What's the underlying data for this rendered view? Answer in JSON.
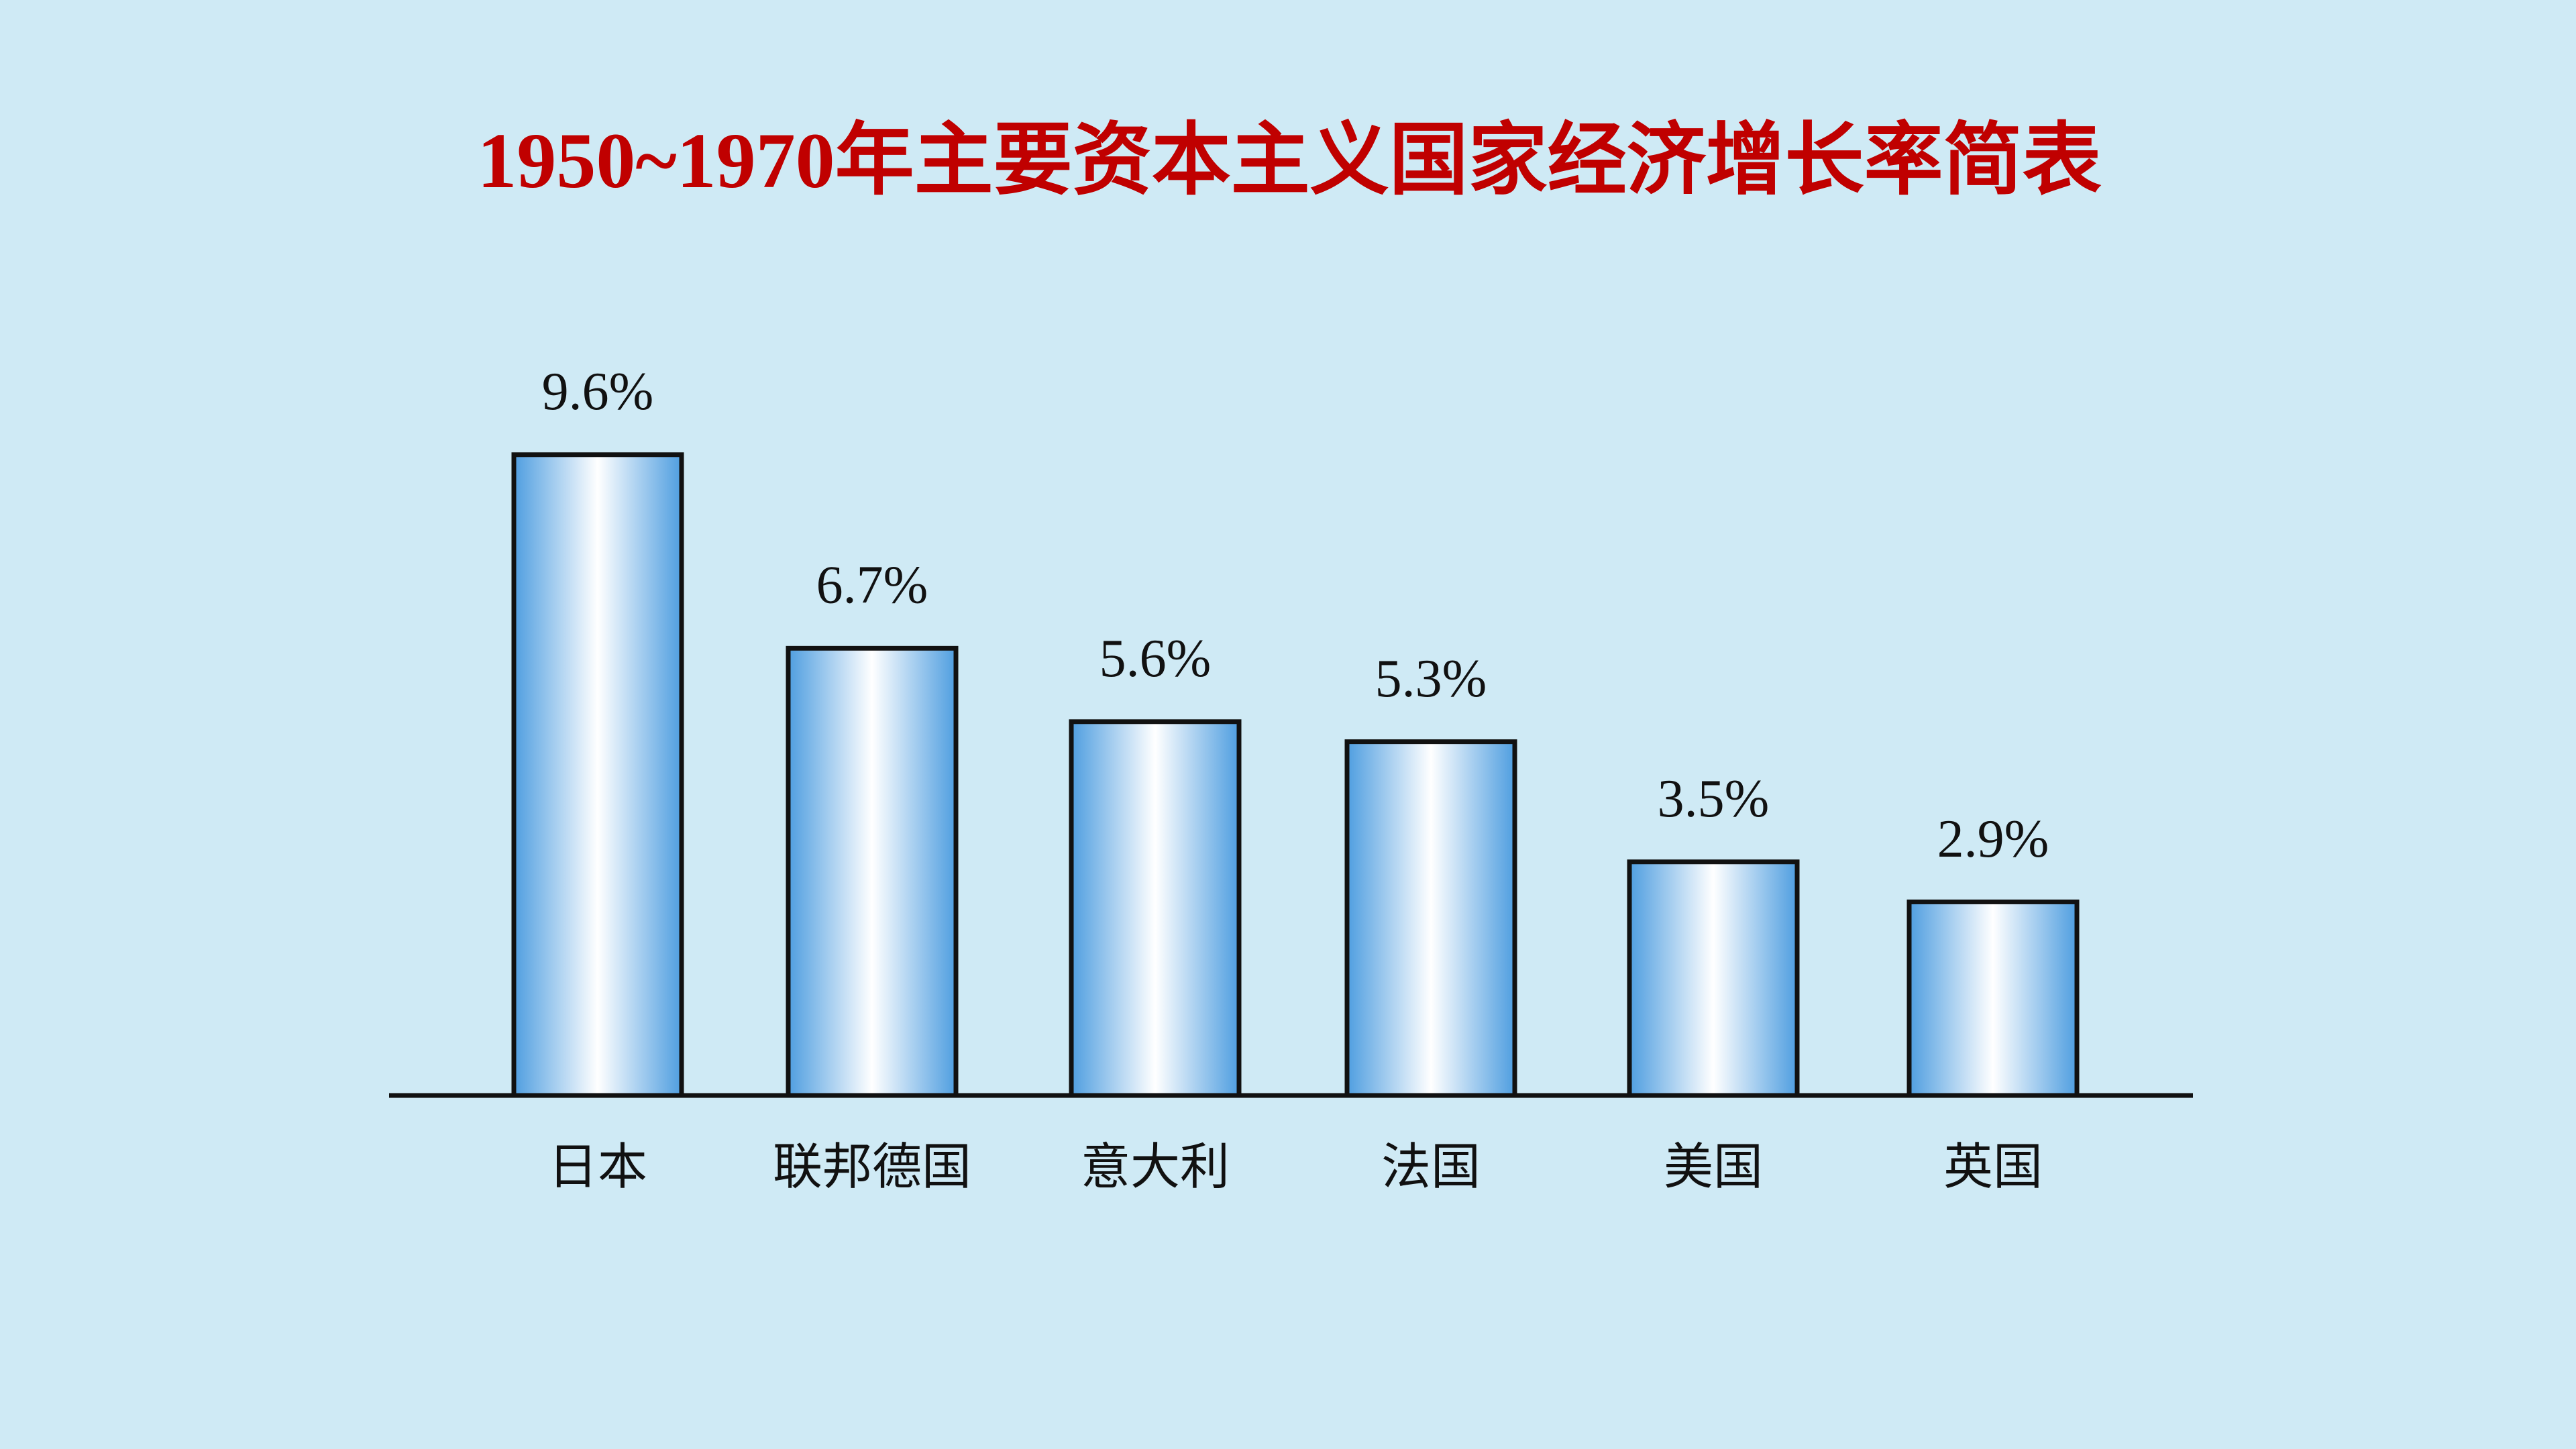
{
  "chart_data": {
    "type": "bar",
    "title": "1950~1970年主要资本主义国家经济增长率简表",
    "categories": [
      "日本",
      "联邦德国",
      "意大利",
      "法国",
      "美国",
      "英国"
    ],
    "values": [
      9.6,
      6.7,
      5.6,
      5.3,
      3.5,
      2.9
    ],
    "value_labels": [
      "9.6%",
      "6.7%",
      "5.6%",
      "5.3%",
      "3.5%",
      "2.9%"
    ],
    "color": "#4f9ee0"
  }
}
